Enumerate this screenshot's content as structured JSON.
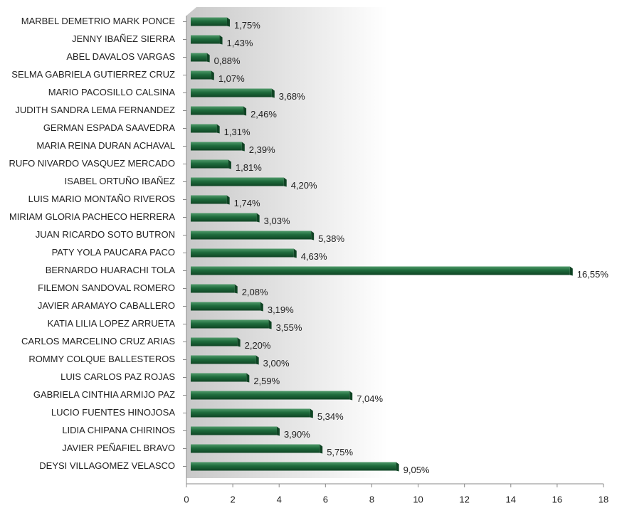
{
  "chart_data": {
    "type": "bar",
    "orientation": "horizontal",
    "categories": [
      "MARBEL DEMETRIO MARK PONCE",
      "JENNY IBAÑEZ SIERRA",
      "ABEL DAVALOS VARGAS",
      "SELMA GABRIELA GUTIERREZ CRUZ",
      "MARIO PACOSILLO CALSINA",
      "JUDITH SANDRA LEMA FERNANDEZ",
      "GERMAN ESPADA SAAVEDRA",
      "MARIA REINA DURAN ACHAVAL",
      "RUFO NIVARDO VASQUEZ MERCADO",
      "ISABEL ORTUÑO IBAÑEZ",
      "LUIS MARIO MONTAÑO RIVEROS",
      "MIRIAM GLORIA PACHECO HERRERA",
      "JUAN RICARDO SOTO BUTRON",
      "PATY YOLA PAUCARA PACO",
      "BERNARDO HUARACHI TOLA",
      "FILEMON SANDOVAL ROMERO",
      "JAVIER ARAMAYO CABALLERO",
      "KATIA LILIA LOPEZ ARRUETA",
      "CARLOS MARCELINO CRUZ ARIAS",
      "ROMMY COLQUE BALLESTEROS",
      "LUIS CARLOS PAZ ROJAS",
      "GABRIELA CINTHIA ARMIJO PAZ",
      "LUCIO FUENTES HINOJOSA",
      "LIDIA CHIPANA CHIRINOS",
      "JAVIER PEÑAFIEL BRAVO",
      "DEYSI VILLAGOMEZ VELASCO"
    ],
    "values": [
      1.75,
      1.43,
      0.88,
      1.07,
      3.68,
      2.46,
      1.31,
      2.39,
      1.81,
      4.2,
      1.74,
      3.03,
      5.38,
      4.63,
      16.55,
      2.08,
      3.19,
      3.55,
      2.2,
      3.0,
      2.59,
      7.04,
      5.34,
      3.9,
      5.75,
      9.05
    ],
    "value_labels": [
      "1,75%",
      "1,43%",
      "0,88%",
      "1,07%",
      "3,68%",
      "2,46%",
      "1,31%",
      "2,39%",
      "1,81%",
      "4,20%",
      "1,74%",
      "3,03%",
      "5,38%",
      "4,63%",
      "16,55%",
      "2,08%",
      "3,19%",
      "3,55%",
      "2,20%",
      "3,00%",
      "2,59%",
      "7,04%",
      "5,34%",
      "3,90%",
      "5,75%",
      "9,05%"
    ],
    "color": "#1e6b3c",
    "xlim": [
      0,
      18
    ],
    "xticks": [
      0,
      2,
      4,
      6,
      8,
      10,
      12,
      14,
      16,
      18
    ]
  }
}
